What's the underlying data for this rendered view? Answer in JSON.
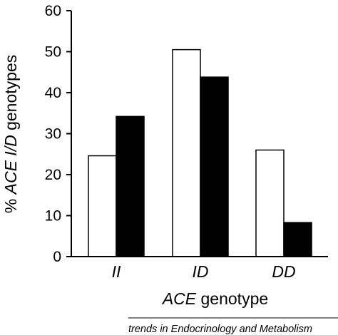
{
  "chart_data": {
    "type": "bar",
    "categories": [
      "II",
      "ID",
      "DD"
    ],
    "series": [
      {
        "fill": "#ffffff",
        "values": [
          24.6,
          50.5,
          26.0
        ]
      },
      {
        "fill": "#000000",
        "values": [
          34.2,
          43.8,
          8.3
        ]
      }
    ],
    "ylim": [
      0,
      60
    ],
    "yticks": [
      0,
      10,
      20,
      30,
      40,
      50,
      60
    ],
    "xlabel": {
      "italic": "ACE",
      "plain": " genotype"
    },
    "ylabel": {
      "prefix": "% ",
      "italic": "ACE I/D",
      "suffix": " genotypes"
    },
    "grid": false,
    "legend": "none"
  },
  "footer": {
    "source": "trends in Endocrinology and Metabolism"
  }
}
